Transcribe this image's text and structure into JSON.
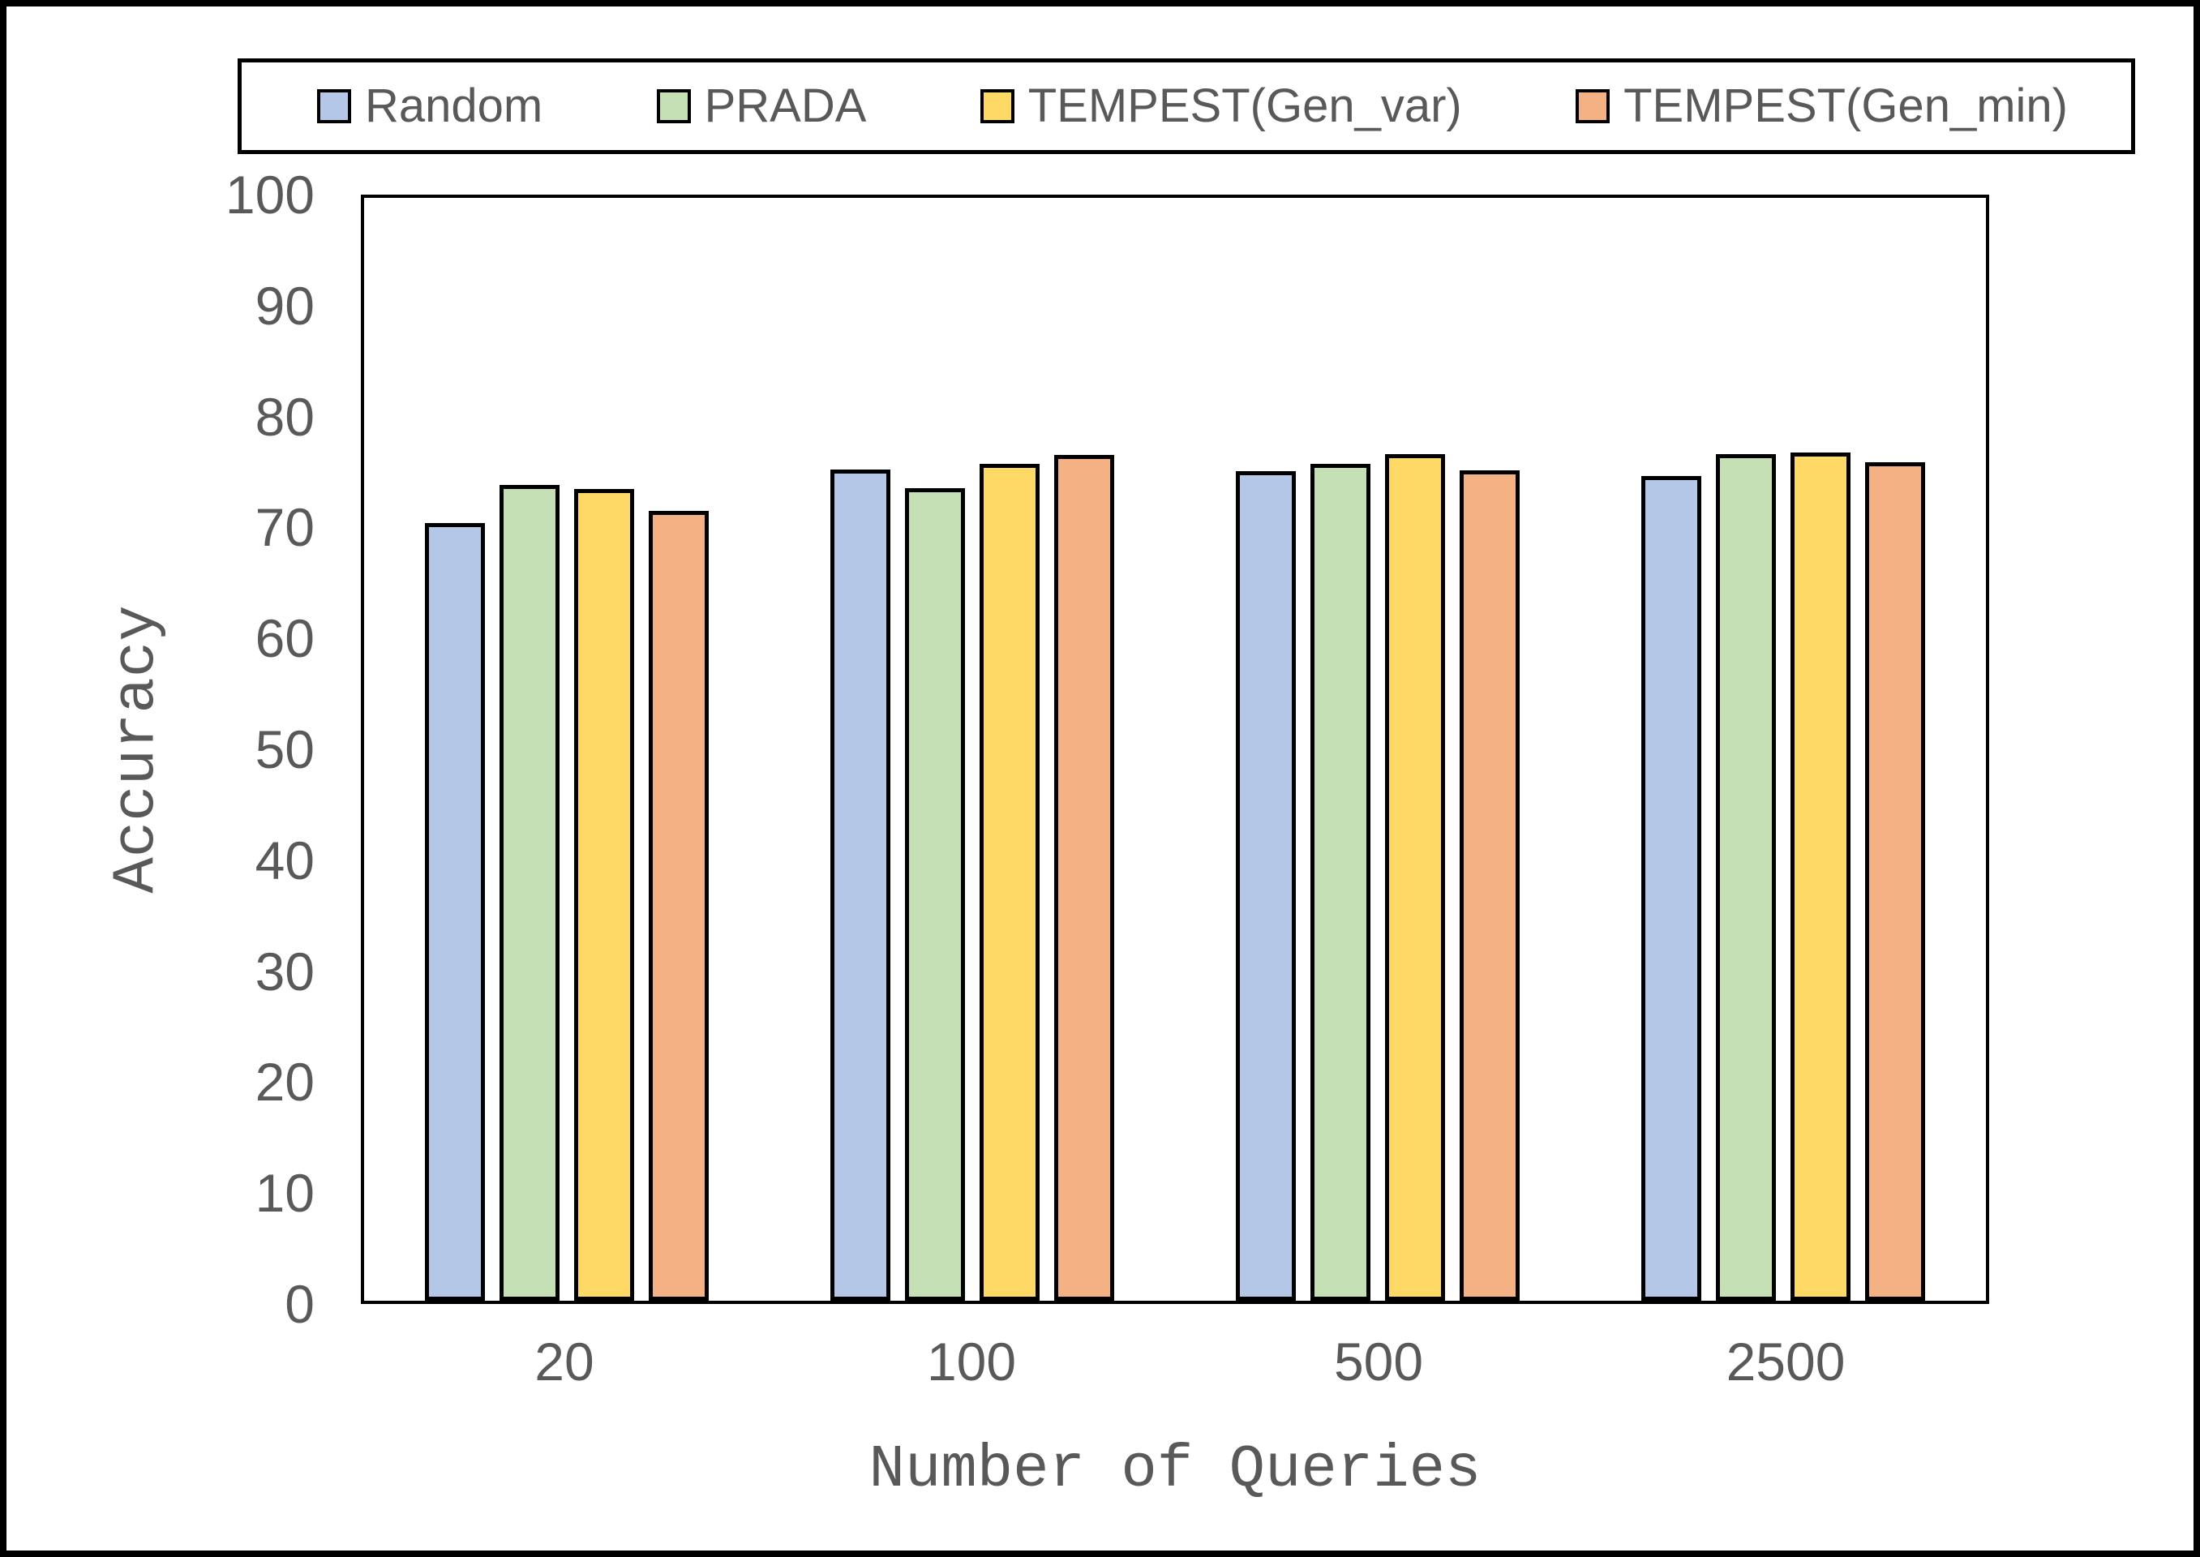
{
  "chart_data": {
    "type": "bar",
    "xlabel": "Number of Queries",
    "ylabel": "Accuracy",
    "categories": [
      "20",
      "100",
      "500",
      "2500"
    ],
    "series": [
      {
        "name": "Random",
        "color": "#B4C7E7",
        "values": [
          70.5,
          75.4,
          75.2,
          74.8
        ]
      },
      {
        "name": "PRADA",
        "color": "#C5E0B4",
        "values": [
          74.0,
          73.7,
          75.9,
          76.8
        ]
      },
      {
        "name": "TEMPEST(Gen_var)",
        "color": "#FFD966",
        "values": [
          73.6,
          75.9,
          76.8,
          76.9
        ]
      },
      {
        "name": "TEMPEST(Gen_min)",
        "color": "#F4B183",
        "values": [
          71.6,
          76.7,
          75.3,
          76.0
        ]
      }
    ],
    "ylim": [
      0,
      100
    ],
    "yticks": [
      0,
      10,
      20,
      30,
      40,
      50,
      60,
      70,
      80,
      90,
      100
    ],
    "grid": false,
    "legend_position": "top",
    "bar_outline_color": "#000000",
    "text_color": "#595959"
  }
}
